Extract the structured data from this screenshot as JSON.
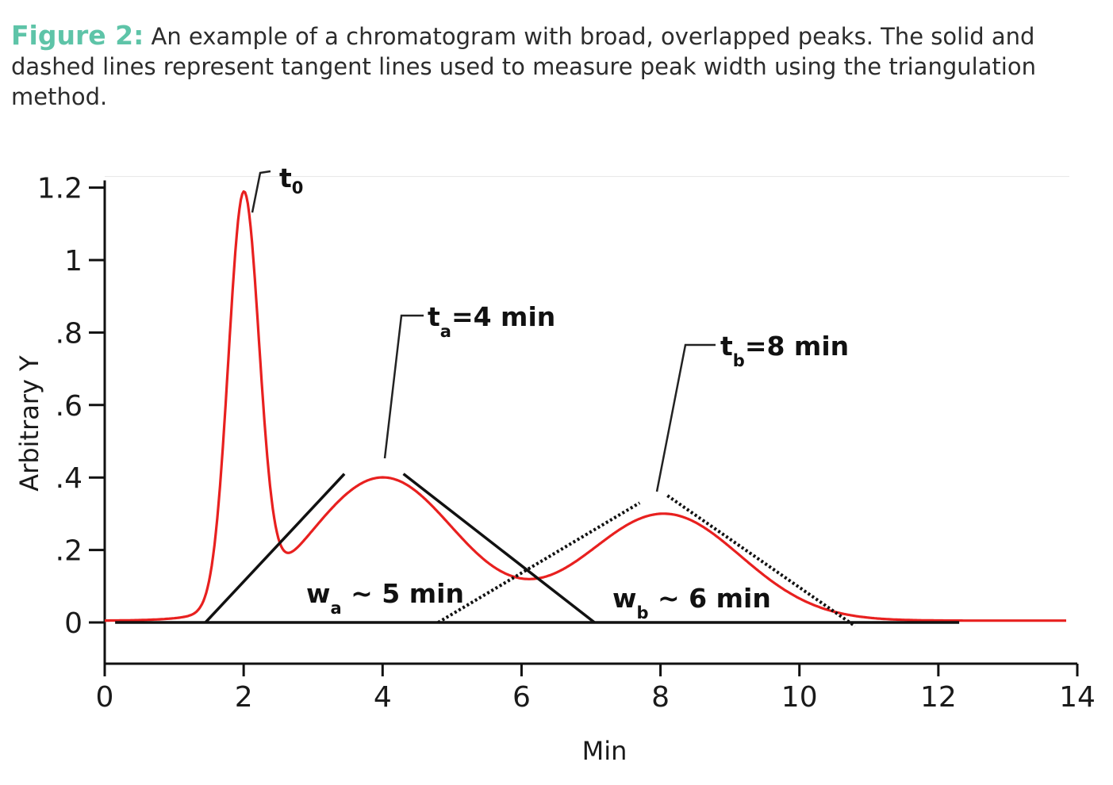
{
  "caption": {
    "label": "Figure 2:",
    "text": " An example of a chromatogram with broad, overlapped peaks. The solid and dashed lines represent tangent lines used to measure peak width using the triangulation method."
  },
  "colors": {
    "caption_label": "#5ec4a8",
    "trace": "#e8201f",
    "axis": "#111111"
  },
  "chart_data": {
    "type": "line",
    "title": "",
    "xlabel": "Min",
    "ylabel": "Arbitrary Y",
    "xlim": [
      0,
      14
    ],
    "ylim": [
      -0.11,
      1.22
    ],
    "x_ticks": [
      0,
      2,
      4,
      6,
      8,
      10,
      12,
      14
    ],
    "x_tick_labels": [
      "0",
      "2",
      "4",
      "6",
      "8",
      "10",
      "12",
      "14"
    ],
    "y_ticks": [
      0,
      0.2,
      0.4,
      0.6,
      0.8,
      1.0,
      1.2
    ],
    "y_tick_labels": [
      "0",
      ".2",
      ".4",
      ".6",
      ".8",
      "1",
      "1.2"
    ],
    "series": [
      {
        "name": "chromatogram",
        "peaks": [
          {
            "center": 2.0,
            "height": 1.12,
            "sigma": 0.22
          },
          {
            "center": 4.0,
            "height": 0.395,
            "sigma": 1.05
          },
          {
            "center": 8.05,
            "height": 0.295,
            "sigma": 1.1
          }
        ],
        "baseline": 0.005
      }
    ],
    "baseline_line": {
      "x": [
        0.15,
        12.3
      ],
      "y": 0
    },
    "tangents": [
      {
        "name": "peak-a-left-tangent",
        "style": "solid",
        "x": [
          1.45,
          3.45
        ],
        "y": [
          0,
          0.41
        ]
      },
      {
        "name": "peak-a-right-tangent",
        "style": "solid",
        "x": [
          4.3,
          7.05
        ],
        "y": [
          0.41,
          0
        ]
      },
      {
        "name": "peak-b-left-tangent",
        "style": "dotted",
        "x": [
          4.8,
          7.7
        ],
        "y": [
          0,
          0.33
        ]
      },
      {
        "name": "peak-b-right-tangent",
        "style": "dotted",
        "x": [
          8.1,
          10.8
        ],
        "y": [
          0.35,
          -0.01
        ]
      }
    ],
    "annotations": {
      "t0": {
        "main": "t",
        "sub": "0",
        "suffix": ""
      },
      "ta": {
        "main": "t",
        "sub": "a",
        "suffix": "=4 min"
      },
      "tb": {
        "main": "t",
        "sub": "b",
        "suffix": "=8 min"
      },
      "wa": {
        "main": "w",
        "sub": "a",
        "suffix": " ~ 5 min"
      },
      "wb": {
        "main": "w",
        "sub": "b",
        "suffix": " ~ 6 min"
      }
    }
  }
}
